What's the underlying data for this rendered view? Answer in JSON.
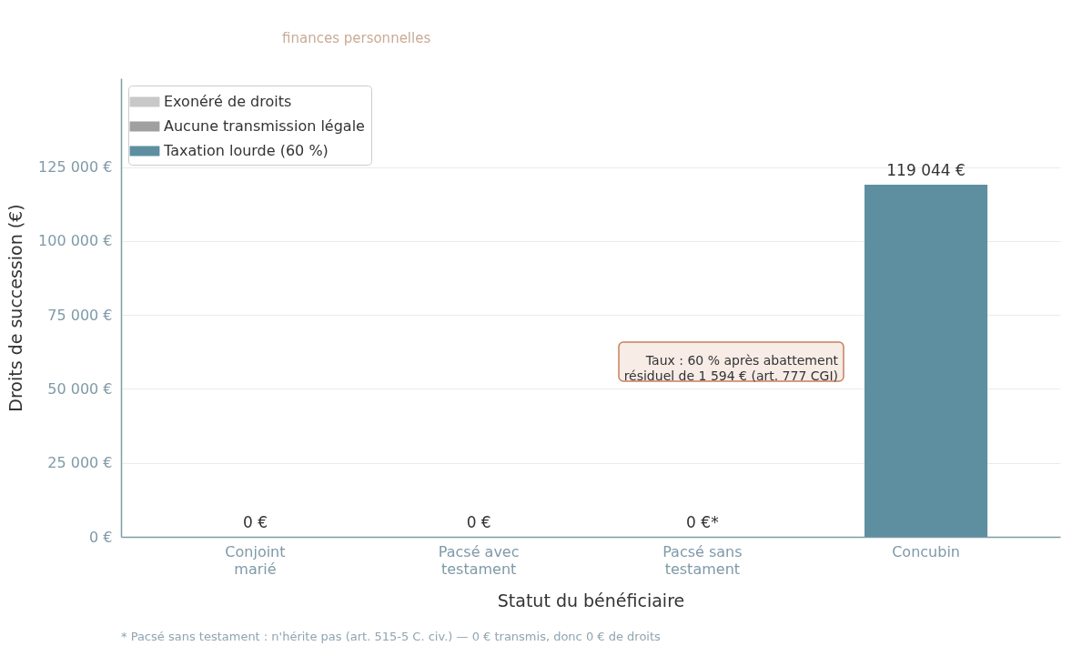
{
  "chart_data": {
    "type": "bar",
    "subtitle": "finances personnelles",
    "xlabel": "Statut du bénéficiaire",
    "ylabel": "Droits de succession (€)",
    "categories": [
      "Conjoint marié",
      "Pacsé avec testament",
      "Pacsé sans testament",
      "Concubin"
    ],
    "series": [
      {
        "name": "Exonéré de droits",
        "color": "#c8c8c8",
        "values": [
          0,
          0,
          null,
          null
        ],
        "value_labels": [
          "0 €",
          "0 €",
          null,
          null
        ]
      },
      {
        "name": "Aucune transmission légale",
        "color": "#a0a0a0",
        "values": [
          null,
          null,
          0,
          null
        ],
        "value_labels": [
          null,
          null,
          "0 €*",
          null
        ]
      },
      {
        "name": "Taxation lourde (60 %)",
        "color": "#5e8fa0",
        "values": [
          null,
          null,
          null,
          119044
        ],
        "value_labels": [
          null,
          null,
          null,
          "119 044 €"
        ]
      }
    ],
    "ylim": [
      0,
      155000
    ],
    "yticks": [
      {
        "value": 0,
        "label": "0 €"
      },
      {
        "value": 25000,
        "label": "25 000 €"
      },
      {
        "value": 50000,
        "label": "50 000 €"
      },
      {
        "value": 75000,
        "label": "75 000 €"
      },
      {
        "value": 100000,
        "label": "100 000 €"
      },
      {
        "value": 125000,
        "label": "125 000 €"
      }
    ],
    "grid": "y",
    "legend": "top left",
    "annotations": [
      "Taux : 60 % après abattement\nrésiduel de 1 594 € (art. 777 CGI)",
      "* Pacsé sans testament : n'hérite pas (art. 515-5 C. civ.) — 0 € transmis, donc 0 € de droits"
    ]
  }
}
